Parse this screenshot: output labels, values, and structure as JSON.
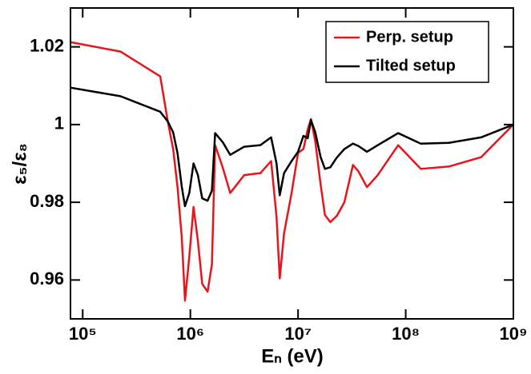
{
  "chart_data": {
    "type": "line",
    "xlabel": "Eₙ (eV)",
    "ylabel": "ε₅/ε₈",
    "log_x": true,
    "xlim": [
      77000,
      1000000000
    ],
    "ylim": [
      0.95,
      1.03
    ],
    "xticks": [
      {
        "value": 100000,
        "label": "10⁵"
      },
      {
        "value": 1000000,
        "label": "10⁶"
      },
      {
        "value": 10000000,
        "label": "10⁷"
      },
      {
        "value": 100000000,
        "label": "10⁸"
      },
      {
        "value": 1000000000,
        "label": "10⁹"
      }
    ],
    "yticks": [
      0.96,
      0.98,
      1,
      1.02
    ],
    "legend": "upper right",
    "x": [
      77000,
      224000,
      525000,
      617000,
      692000,
      759000,
      832000,
      891000,
      977000,
      1070000,
      1175000,
      1288000,
      1445000,
      1585000,
      1698000,
      1995000,
      2344000,
      3162000,
      4467000,
      5623000,
      6310000,
      6761000,
      7413000,
      8710000,
      10000000,
      11220000,
      12300000,
      13180000,
      14450000,
      16220000,
      17780000,
      19950000,
      22910000,
      26920000,
      32360000,
      36310000,
      43650000,
      54950000,
      85110000,
      138000000,
      251200000,
      501200000,
      1000000000
    ],
    "series": [
      {
        "name": "Perp. setup",
        "color": "#e8141c",
        "values": [
          1.0212,
          1.0188,
          1.0124,
          1.0008,
          0.9937,
          0.984,
          0.971,
          0.9547,
          0.966,
          0.9788,
          0.97,
          0.959,
          0.957,
          0.964,
          0.9947,
          0.989,
          0.9824,
          0.987,
          0.9875,
          0.9906,
          0.9763,
          0.9604,
          0.972,
          0.9824,
          0.9927,
          0.9937,
          0.9988,
          1.0014,
          0.9957,
          0.9845,
          0.9767,
          0.9749,
          0.9765,
          0.98,
          0.9896,
          0.988,
          0.9839,
          0.987,
          0.9947,
          0.9886,
          0.9892,
          0.9916,
          1.0
        ]
      },
      {
        "name": "Tilted setup",
        "color": "#000000",
        "values": [
          1.0095,
          1.0073,
          1.0033,
          1.0008,
          0.998,
          0.9927,
          0.984,
          0.979,
          0.9824,
          0.99,
          0.987,
          0.981,
          0.9804,
          0.983,
          0.9978,
          0.9955,
          0.9922,
          0.9943,
          0.9947,
          0.9967,
          0.99,
          0.9818,
          0.9875,
          0.9906,
          0.993,
          0.9971,
          0.9965,
          1.0012,
          0.998,
          0.9916,
          0.9886,
          0.989,
          0.9915,
          0.9937,
          0.9951,
          0.9945,
          0.993,
          0.9947,
          0.9978,
          0.9951,
          0.9953,
          0.9967,
          1.0
        ]
      }
    ]
  }
}
